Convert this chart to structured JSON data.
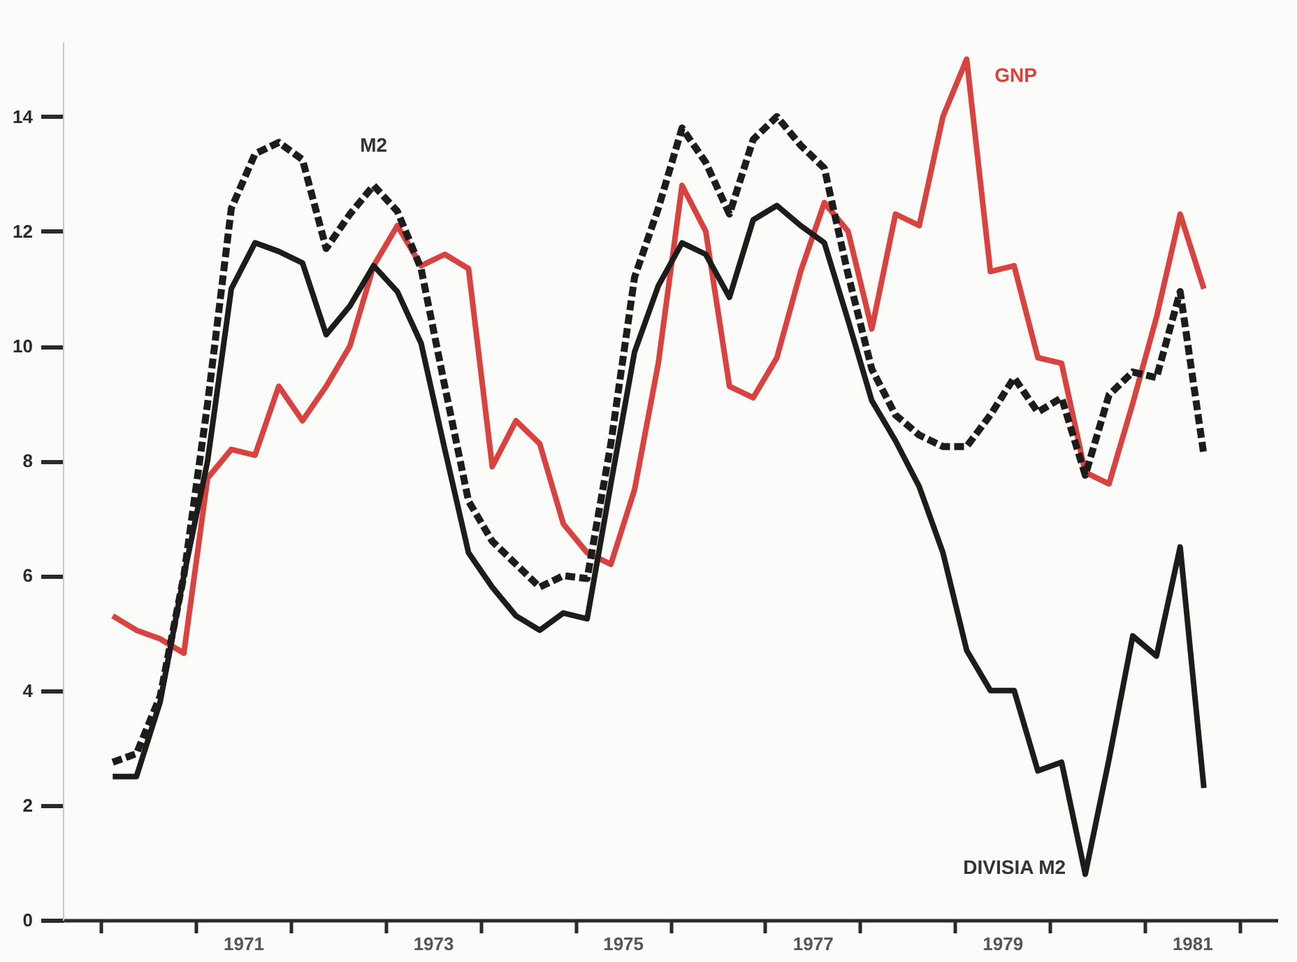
{
  "chart_data": {
    "type": "line",
    "x": [
      1970.125,
      1970.375,
      1970.625,
      1970.875,
      1971.125,
      1971.375,
      1971.625,
      1971.875,
      1972.125,
      1972.375,
      1972.625,
      1972.875,
      1973.125,
      1973.375,
      1973.625,
      1973.875,
      1974.125,
      1974.375,
      1974.625,
      1974.875,
      1975.125,
      1975.375,
      1975.625,
      1975.875,
      1976.125,
      1976.375,
      1976.625,
      1976.875,
      1977.125,
      1977.375,
      1977.625,
      1977.875,
      1978.125,
      1978.375,
      1978.625,
      1978.875,
      1979.125,
      1979.375,
      1979.625,
      1979.875,
      1980.125,
      1980.375,
      1980.625,
      1980.875,
      1981.125,
      1981.375,
      1981.625
    ],
    "series": [
      {
        "name": "GNP",
        "color": "#d9433f",
        "line_style": "solid",
        "values": [
          5.3,
          5.05,
          4.9,
          4.65,
          7.7,
          8.2,
          8.1,
          9.3,
          8.7,
          9.3,
          10.0,
          11.4,
          12.1,
          11.4,
          11.6,
          11.35,
          7.9,
          8.7,
          8.3,
          6.9,
          6.4,
          6.2,
          7.5,
          9.7,
          12.8,
          12.0,
          9.3,
          9.1,
          9.8,
          11.3,
          12.5,
          12.0,
          10.3,
          12.3,
          12.1,
          14.0,
          15.0,
          11.3,
          11.4,
          9.8,
          9.7,
          7.8,
          7.6,
          9.0,
          10.5,
          12.3,
          11.0
        ]
      },
      {
        "name": "M2",
        "color": "#1c1c1c",
        "line_style": "dashed",
        "values": [
          2.75,
          2.9,
          3.9,
          6.0,
          9.0,
          12.4,
          13.35,
          13.55,
          13.25,
          11.7,
          12.3,
          12.8,
          12.35,
          11.35,
          9.3,
          7.3,
          6.6,
          6.2,
          5.8,
          6.0,
          5.95,
          8.3,
          11.2,
          12.4,
          13.8,
          13.2,
          12.3,
          13.6,
          14.0,
          13.5,
          13.1,
          11.25,
          9.6,
          8.8,
          8.45,
          8.25,
          8.25,
          8.8,
          9.45,
          8.85,
          9.1,
          7.75,
          9.15,
          9.55,
          9.45,
          10.95,
          8.1
        ]
      },
      {
        "name": "DIVISIA M2",
        "color": "#1c1c1c",
        "line_style": "solid",
        "values": [
          2.5,
          2.5,
          3.8,
          6.0,
          8.0,
          11.0,
          11.8,
          11.65,
          11.45,
          10.2,
          10.7,
          11.4,
          10.95,
          10.05,
          8.2,
          6.4,
          5.8,
          5.3,
          5.05,
          5.35,
          5.25,
          7.6,
          9.9,
          11.05,
          11.8,
          11.6,
          10.85,
          12.2,
          12.45,
          12.1,
          11.8,
          10.45,
          9.05,
          8.35,
          7.55,
          6.4,
          4.7,
          4.0,
          4.0,
          2.6,
          2.75,
          0.8,
          2.8,
          4.95,
          4.6,
          6.5,
          2.3
        ]
      }
    ],
    "xlim": [
      1969.6,
      1982.4
    ],
    "xticks": [
      {
        "value": 1970,
        "label": null
      },
      {
        "value": 1971,
        "label": null
      },
      {
        "value": 1972,
        "label": null
      },
      {
        "value": 1973,
        "label": null
      },
      {
        "value": 1974,
        "label": null
      },
      {
        "value": 1975,
        "label": null
      },
      {
        "value": 1976,
        "label": null
      },
      {
        "value": 1977,
        "label": null
      },
      {
        "value": 1978,
        "label": null
      },
      {
        "value": 1979,
        "label": null
      },
      {
        "value": 1980,
        "label": null
      },
      {
        "value": 1981,
        "label": null
      },
      {
        "value": 1982,
        "label": null
      },
      {
        "value": 1971.5,
        "label": "1971"
      },
      {
        "value": 1973.5,
        "label": "1973"
      },
      {
        "value": 1975.5,
        "label": "1975"
      },
      {
        "value": 1977.5,
        "label": "1977"
      },
      {
        "value": 1979.5,
        "label": "1979"
      },
      {
        "value": 1981.5,
        "label": "1981"
      }
    ],
    "ylim": [
      0,
      15.3
    ],
    "yticks": [
      0,
      2,
      4,
      6,
      8,
      10,
      12,
      14
    ],
    "grid": false,
    "marker": "none"
  }
}
